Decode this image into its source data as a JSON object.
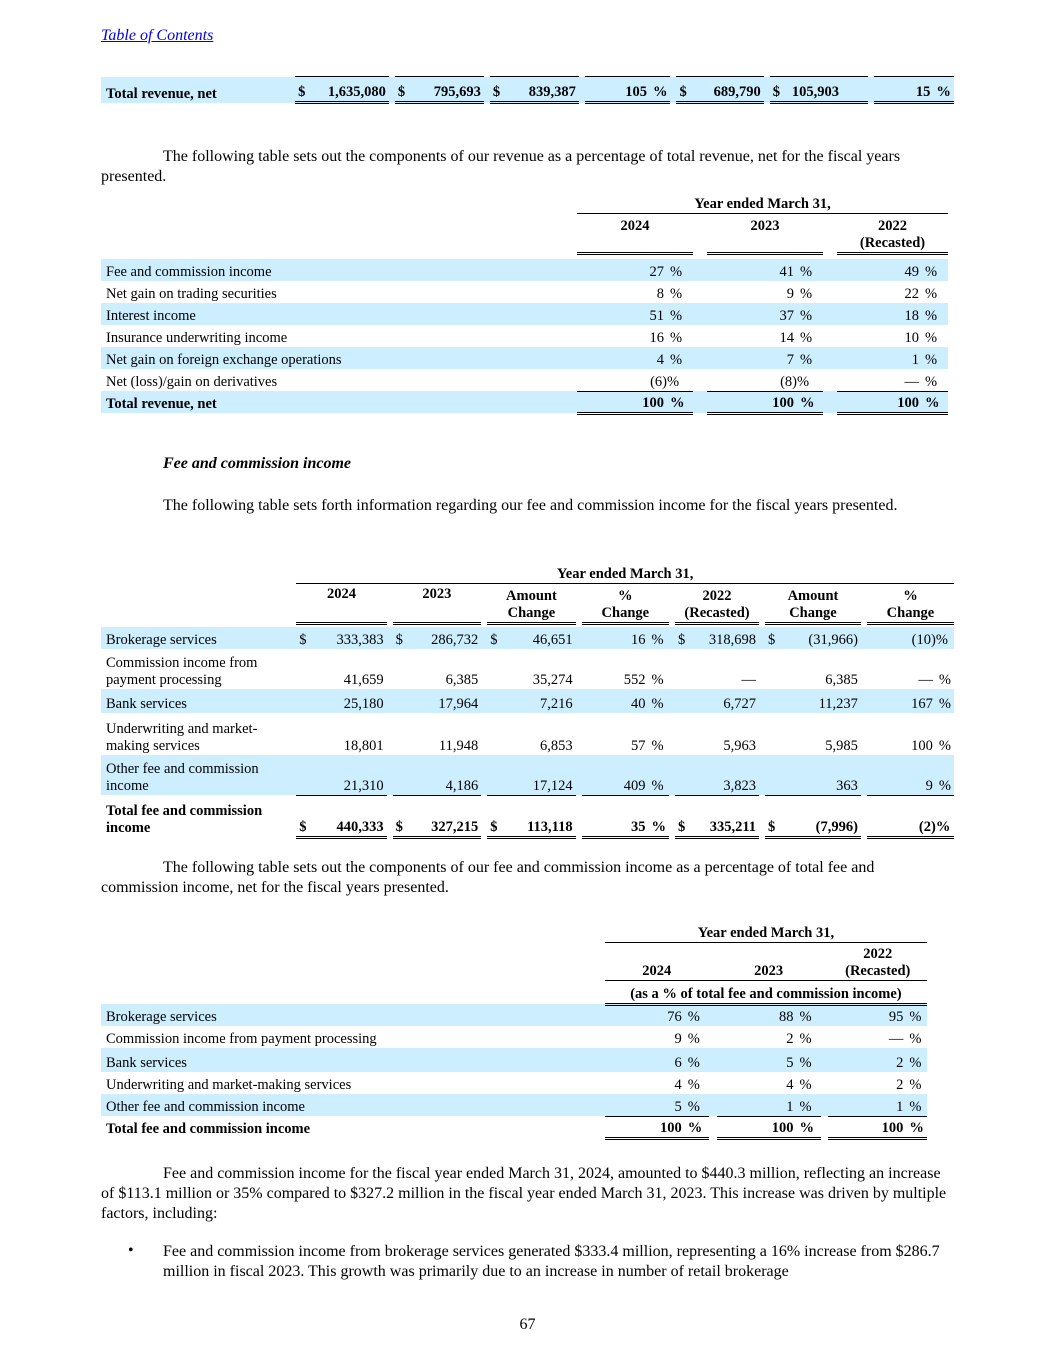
{
  "header": {
    "toc_link": "Table of Contents"
  },
  "top_table": {
    "label": "Total revenue, net",
    "cells": [
      "$",
      "1,635,080",
      "$",
      "795,693",
      "$",
      "839,387",
      "105",
      "%",
      "$",
      "689,790",
      "$",
      "105,903",
      "15",
      "%"
    ]
  },
  "para1": "The following table sets out the components of our revenue as a percentage of total revenue, net for the fiscal years presented.",
  "table1": {
    "period": "Year ended March 31,",
    "years": [
      "2024",
      "2023",
      "2022"
    ],
    "recasted": "(Recasted)",
    "rows": [
      {
        "label": "Fee and commission income",
        "v": [
          "27",
          "41",
          "49"
        ],
        "s": [
          "%",
          "%",
          "%"
        ]
      },
      {
        "label": "Net gain on trading securities",
        "v": [
          "8",
          "9",
          "22"
        ],
        "s": [
          "%",
          "%",
          "%"
        ]
      },
      {
        "label": "Interest income",
        "v": [
          "51",
          "37",
          "18"
        ],
        "s": [
          "%",
          "%",
          "%"
        ]
      },
      {
        "label": "Insurance underwriting income",
        "v": [
          "16",
          "14",
          "10"
        ],
        "s": [
          "%",
          "%",
          "%"
        ]
      },
      {
        "label": "Net gain on foreign exchange operations",
        "v": [
          "4",
          "7",
          "1"
        ],
        "s": [
          "%",
          "%",
          "%"
        ]
      },
      {
        "label": "Net (loss)/gain on derivatives",
        "v": [
          "(6)",
          "(8)",
          "—"
        ],
        "s": [
          "%",
          "%",
          "%"
        ]
      }
    ],
    "total": {
      "label": "Total revenue, net",
      "v": [
        "100",
        "100",
        "100"
      ],
      "s": [
        "%",
        "%",
        "%"
      ]
    }
  },
  "section_title": "Fee and commission income",
  "para2": "The following table sets forth information regarding our fee and commission income for the fiscal years presented.",
  "table2": {
    "period": "Year ended March 31,",
    "headers": [
      [
        "2024"
      ],
      [
        "2023"
      ],
      [
        "Amount",
        "Change"
      ],
      [
        "%",
        "Change"
      ],
      [
        "2022",
        "(Recasted)"
      ],
      [
        "Amount",
        "Change"
      ],
      [
        "%",
        "Change"
      ]
    ],
    "rows": [
      {
        "label": [
          "Brokerage services"
        ],
        "c": [
          "$",
          "333,383",
          "$",
          "286,732",
          "$",
          "46,651",
          "16",
          "%",
          "$",
          "318,698",
          "$",
          "(31,966)",
          "(10)",
          "%"
        ]
      },
      {
        "label": [
          "Commission income from",
          "payment processing"
        ],
        "c": [
          "",
          "41,659",
          "",
          "6,385",
          "",
          "35,274",
          "552",
          "%",
          "",
          "—",
          "",
          "6,385",
          "—",
          "%"
        ]
      },
      {
        "label": [
          "Bank services"
        ],
        "c": [
          "",
          "25,180",
          "",
          "17,964",
          "",
          "7,216",
          "40",
          "%",
          "",
          "6,727",
          "",
          "11,237",
          "167",
          "%"
        ]
      },
      {
        "label": [
          "Underwriting and market-",
          "making services"
        ],
        "c": [
          "",
          "18,801",
          "",
          "11,948",
          "",
          "6,853",
          "57",
          "%",
          "",
          "5,963",
          "",
          "5,985",
          "100",
          "%"
        ]
      },
      {
        "label": [
          "Other fee and commission",
          "income"
        ],
        "c": [
          "",
          "21,310",
          "",
          "4,186",
          "",
          "17,124",
          "409",
          "%",
          "",
          "3,823",
          "",
          "363",
          "9",
          "%"
        ]
      }
    ],
    "total": {
      "label": [
        "Total fee and commission",
        "income"
      ],
      "c": [
        "$",
        "440,333",
        "$",
        "327,215",
        "$",
        "113,118",
        "35",
        "%",
        "$",
        "335,211",
        "$",
        "(7,996)",
        "(2)",
        "%"
      ]
    }
  },
  "para3": "The following table sets out the components of our fee and commission income as a percentage of total fee and commission income, net for the fiscal years presented.",
  "table3": {
    "period": "Year ended March 31,",
    "years": [
      "2024",
      "2023",
      "2022"
    ],
    "recasted": "(Recasted)",
    "subhead": "(as a % of total fee and commission income)",
    "rows": [
      {
        "label": "Brokerage services",
        "v": [
          "76",
          "88",
          "95"
        ],
        "s": [
          "%",
          "%",
          "%"
        ]
      },
      {
        "label": "Commission income from payment processing",
        "v": [
          "9",
          "2",
          "—"
        ],
        "s": [
          "%",
          "%",
          "%"
        ]
      },
      {
        "label": "Bank services",
        "v": [
          "6",
          "5",
          "2"
        ],
        "s": [
          "%",
          "%",
          "%"
        ]
      },
      {
        "label": "Underwriting and market-making services",
        "v": [
          "4",
          "4",
          "2"
        ],
        "s": [
          "%",
          "%",
          "%"
        ]
      },
      {
        "label": "Other fee and commission income",
        "v": [
          "5",
          "1",
          "1"
        ],
        "s": [
          "%",
          "%",
          "%"
        ]
      }
    ],
    "total": {
      "label": "Total fee and commission income",
      "v": [
        "100",
        "100",
        "100"
      ],
      "s": [
        "%",
        "%",
        "%"
      ]
    }
  },
  "para4": "Fee and commission income for the fiscal year ended March 31, 2024, amounted to $440.3 million, reflecting an increase of $113.1 million or 35% compared to $327.2 million in the fiscal year ended March 31, 2023. This increase was driven by multiple factors, including:",
  "bullet1": "Fee and commission income from brokerage services generated $333.4 million, representing a 16% increase from $286.7 million in fiscal 2023. This growth was primarily due to an increase in number of retail brokerage",
  "page_number": "67"
}
